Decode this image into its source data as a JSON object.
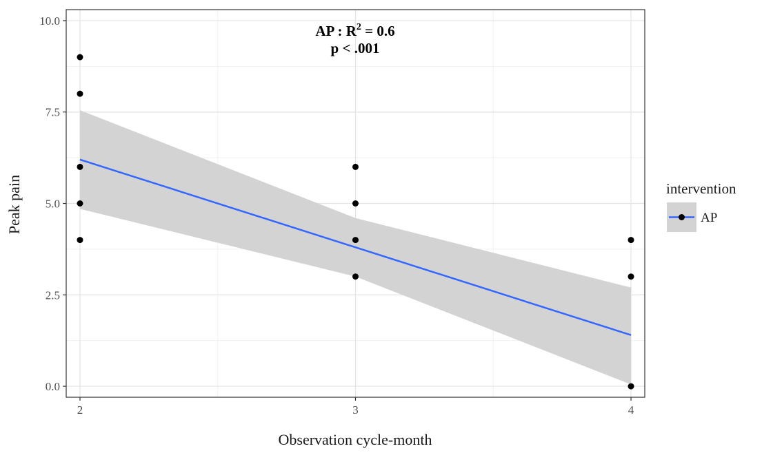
{
  "chart_data": {
    "type": "scatter",
    "title": "",
    "xlabel": "Observation cycle-month",
    "ylabel": "Peak pain",
    "x_ticks": [
      {
        "value": 2,
        "label": "2"
      },
      {
        "value": 3,
        "label": "3"
      },
      {
        "value": 4,
        "label": "4"
      }
    ],
    "y_ticks": [
      {
        "value": 0,
        "label": "0.0"
      },
      {
        "value": 2.5,
        "label": "2.5"
      },
      {
        "value": 5,
        "label": "5.0"
      },
      {
        "value": 7.5,
        "label": "7.5"
      },
      {
        "value": 10,
        "label": "10.0"
      }
    ],
    "xlim": [
      1.95,
      4.05
    ],
    "ylim": [
      -0.3,
      10.3
    ],
    "grid": true,
    "legend": {
      "title": "intervention",
      "placement": "right",
      "entries": [
        "AP"
      ]
    },
    "annotation": {
      "line1_prefix": "AP : R",
      "line1_sup": "2",
      "line1_suffix": " = 0.6",
      "line2": "p < .001"
    },
    "series": [
      {
        "name": "AP",
        "points": [
          {
            "x": 2,
            "y": 9
          },
          {
            "x": 2,
            "y": 8
          },
          {
            "x": 2,
            "y": 6
          },
          {
            "x": 2,
            "y": 5
          },
          {
            "x": 2,
            "y": 4
          },
          {
            "x": 3,
            "y": 6
          },
          {
            "x": 3,
            "y": 5
          },
          {
            "x": 3,
            "y": 4
          },
          {
            "x": 3,
            "y": 3
          },
          {
            "x": 4,
            "y": 4
          },
          {
            "x": 4,
            "y": 3
          },
          {
            "x": 4,
            "y": 0
          }
        ],
        "fit_line": [
          {
            "x": 2,
            "y": 6.2
          },
          {
            "x": 4,
            "y": 1.4
          }
        ],
        "confidence_band": {
          "x": [
            2,
            3,
            4
          ],
          "upper": [
            7.55,
            4.6,
            2.7
          ],
          "lower": [
            4.85,
            3.0,
            0.05
          ]
        },
        "line_color": "#3366ff",
        "band_color": "#d3d3d3",
        "point_color": "#000000"
      }
    ]
  }
}
